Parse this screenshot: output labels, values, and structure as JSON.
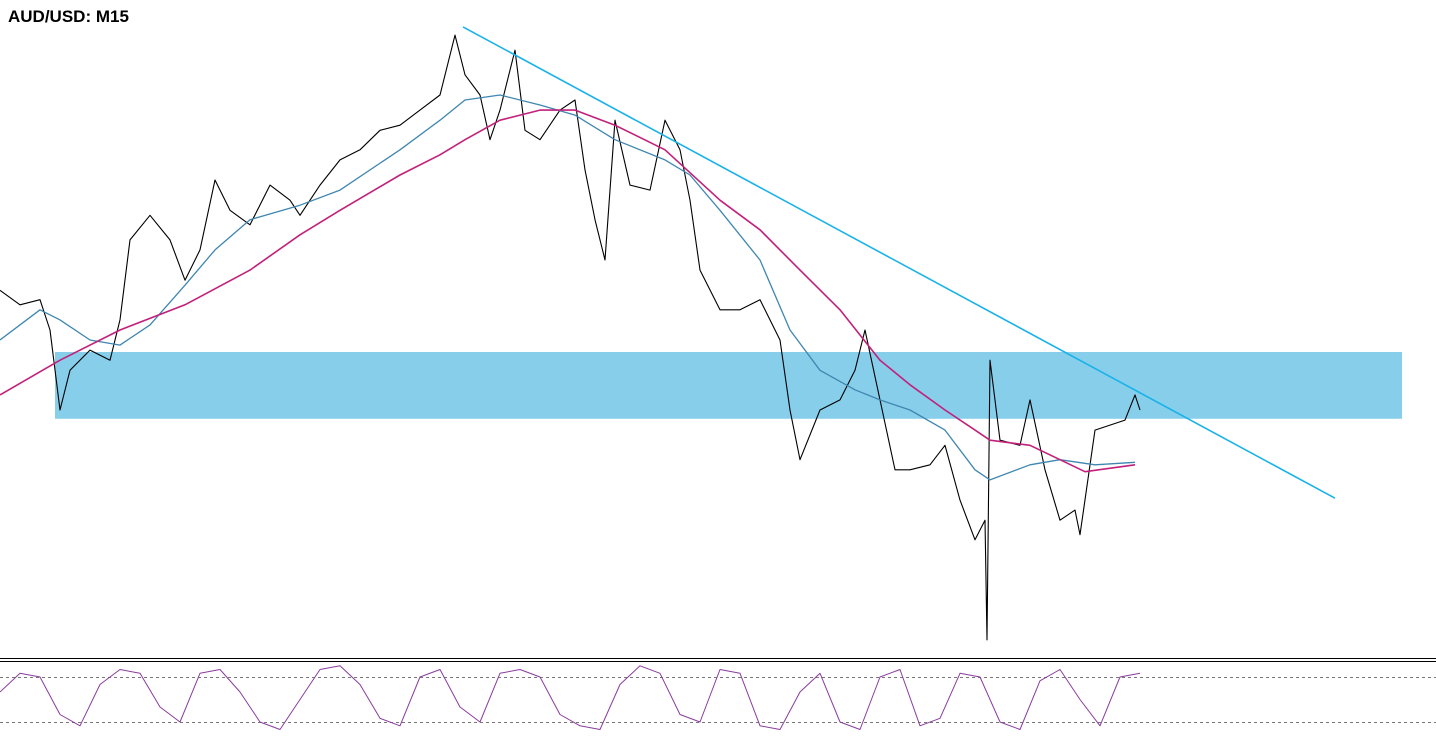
{
  "chart_data": [
    {
      "type": "line",
      "title": "AUD/USD: M15",
      "xlim": [
        0,
        1436
      ],
      "ylim": [
        0,
        100
      ],
      "zone": {
        "x": [
          55,
          1402
        ],
        "range": [
          36.7,
          47.3
        ],
        "color": "#87ceeb"
      },
      "series": [
        {
          "color": "#000000",
          "x": [
            0,
            20,
            40,
            50,
            60,
            70,
            90,
            110,
            120,
            130,
            150,
            170,
            185,
            200,
            215,
            230,
            250,
            270,
            290,
            300,
            320,
            340,
            360,
            380,
            400,
            420,
            440,
            455,
            465,
            480,
            490,
            500,
            515,
            525,
            540,
            560,
            575,
            585,
            595,
            605,
            615,
            630,
            650,
            665,
            680,
            690,
            700,
            720,
            740,
            760,
            780,
            790,
            800,
            820,
            840,
            855,
            865,
            880,
            895,
            910,
            930,
            945,
            960,
            975,
            985,
            987,
            990,
            1000,
            1020,
            1030,
            1045,
            1060,
            1075,
            1080,
            1095,
            1110,
            1125,
            1135,
            1140
          ],
          "values": [
            57.1,
            54.8,
            55.6,
            50.8,
            38.1,
            44.4,
            47.6,
            46.0,
            52.4,
            65.1,
            69.0,
            65.1,
            58.7,
            63.5,
            74.6,
            69.8,
            67.5,
            73.8,
            71.4,
            69.0,
            73.8,
            77.8,
            79.4,
            82.5,
            83.3,
            85.7,
            88.1,
            97.6,
            91.3,
            88.1,
            81.0,
            85.7,
            95.2,
            82.5,
            81.0,
            85.7,
            87.3,
            76.2,
            68.3,
            61.9,
            84.1,
            73.8,
            73.0,
            84.1,
            79.4,
            71.4,
            60.3,
            54.0,
            54.0,
            55.6,
            49.2,
            38.1,
            30.2,
            38.1,
            39.7,
            44.4,
            50.8,
            39.7,
            28.6,
            28.6,
            29.4,
            32.5,
            23.8,
            17.5,
            20.6,
            1.6,
            46.0,
            33.3,
            32.5,
            39.7,
            28.6,
            20.6,
            22.2,
            18.3,
            34.9,
            35.7,
            36.5,
            40.5,
            38.1
          ]
        },
        {
          "color": "#3f86b0",
          "x": [
            0,
            40,
            60,
            90,
            120,
            150,
            185,
            215,
            250,
            300,
            340,
            400,
            440,
            465,
            500,
            540,
            575,
            615,
            665,
            690,
            720,
            760,
            790,
            820,
            855,
            880,
            910,
            945,
            975,
            990,
            1030,
            1060,
            1095,
            1135
          ],
          "values": [
            49.2,
            54.0,
            52.4,
            49.2,
            48.4,
            51.6,
            57.9,
            63.5,
            68.3,
            70.6,
            73.0,
            79.4,
            84.1,
            87.3,
            88.1,
            86.5,
            84.9,
            81.0,
            77.8,
            75.4,
            69.8,
            61.9,
            50.8,
            44.4,
            41.3,
            39.7,
            38.1,
            34.9,
            28.6,
            27.0,
            29.4,
            30.2,
            29.4,
            29.8
          ]
        },
        {
          "color": "#c2207a",
          "x": [
            0,
            60,
            120,
            185,
            250,
            300,
            340,
            400,
            440,
            465,
            500,
            540,
            575,
            615,
            665,
            720,
            760,
            800,
            840,
            880,
            910,
            945,
            975,
            990,
            1030,
            1060,
            1085,
            1135
          ],
          "values": [
            40.5,
            46.0,
            50.8,
            54.8,
            60.3,
            65.9,
            69.8,
            75.4,
            78.6,
            81.0,
            84.1,
            85.7,
            85.7,
            83.3,
            79.4,
            71.4,
            66.7,
            60.3,
            54.0,
            46.0,
            42.1,
            38.1,
            34.9,
            33.3,
            32.5,
            30.2,
            28.3,
            29.4
          ]
        },
        {
          "color": "#1ab2e8",
          "x": [
            463,
            1335
          ],
          "values": [
            98.9,
            24.1
          ]
        }
      ]
    },
    {
      "type": "line",
      "xlim": [
        0,
        1436
      ],
      "ylim": [
        0,
        100
      ],
      "levels": [
        80,
        20
      ],
      "series": [
        {
          "color": "#8a3c9e",
          "x": [
            0,
            20,
            40,
            60,
            80,
            100,
            120,
            140,
            160,
            180,
            200,
            220,
            240,
            260,
            280,
            300,
            320,
            340,
            360,
            380,
            400,
            420,
            440,
            460,
            480,
            500,
            520,
            540,
            560,
            580,
            600,
            620,
            640,
            660,
            680,
            700,
            720,
            740,
            760,
            780,
            800,
            820,
            840,
            860,
            880,
            900,
            920,
            940,
            960,
            980,
            1000,
            1020,
            1040,
            1060,
            1080,
            1100,
            1120,
            1140
          ],
          "values": [
            60,
            85,
            80,
            30,
            15,
            70,
            90,
            85,
            40,
            20,
            85,
            90,
            60,
            20,
            10,
            50,
            90,
            95,
            70,
            25,
            15,
            80,
            90,
            40,
            20,
            85,
            90,
            80,
            30,
            15,
            10,
            70,
            95,
            85,
            30,
            20,
            90,
            85,
            15,
            10,
            60,
            85,
            20,
            10,
            80,
            90,
            15,
            25,
            85,
            80,
            20,
            10,
            75,
            90,
            50,
            15,
            80,
            85
          ]
        }
      ]
    }
  ]
}
